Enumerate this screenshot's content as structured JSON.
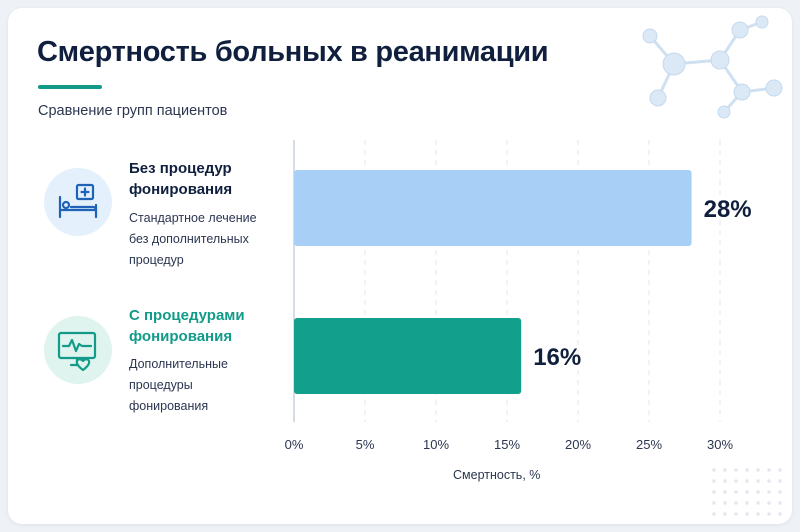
{
  "header": {
    "title": "Смертность больных в реанимации",
    "subtitle": "Сравнение групп пациентов"
  },
  "groups": [
    {
      "title_lines": [
        "Без процедур",
        "фонирования"
      ],
      "desc_lines": [
        "Стандартное лечение",
        "без дополнительных",
        "процедур"
      ],
      "icon": "hospital-bed-icon",
      "color": "#0f1f3d",
      "icon_bg": "#e4f0fb"
    },
    {
      "title_lines": [
        "С процедурами",
        "фонирования"
      ],
      "desc_lines": [
        "Дополнительные",
        "процедуры",
        "фонирования"
      ],
      "icon": "heart-monitor-icon",
      "color": "#129b89",
      "icon_bg": "#dff3ef"
    }
  ],
  "chart_data": {
    "type": "bar",
    "orientation": "horizontal",
    "categories": [
      "Без процедур фонирования",
      "С процедурами фонирования"
    ],
    "values": [
      28,
      16
    ],
    "value_labels": [
      "28%",
      "16%"
    ],
    "colors": [
      "#a8cff5",
      "#12a08c"
    ],
    "xlabel": "Смертность, %",
    "xlim": [
      0,
      30
    ],
    "xticks": [
      0,
      5,
      10,
      15,
      20,
      25,
      30
    ],
    "xtick_labels": [
      "0%",
      "5%",
      "10%",
      "15%",
      "20%",
      "25%",
      "30%"
    ],
    "grid": "vertical-dashed"
  }
}
